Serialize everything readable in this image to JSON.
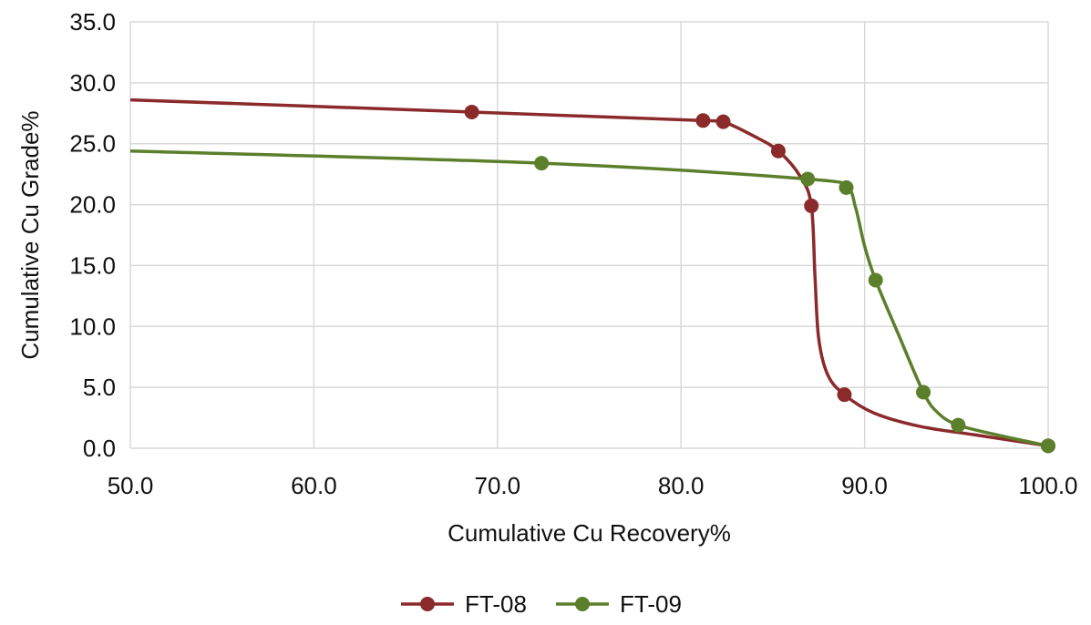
{
  "chart_data": {
    "type": "line",
    "title": "",
    "xlabel": "Cumulative Cu Recovery%",
    "ylabel": "Cumulative Cu Grade%",
    "xlim": [
      50.0,
      100.0
    ],
    "ylim": [
      0.0,
      35.0
    ],
    "x_ticks": [
      "50.0",
      "60.0",
      "70.0",
      "80.0",
      "90.0",
      "100.0"
    ],
    "y_ticks": [
      "0.0",
      "5.0",
      "10.0",
      "15.0",
      "20.0",
      "25.0",
      "30.0",
      "35.0"
    ],
    "grid": true,
    "legend_position": "bottom",
    "series": [
      {
        "name": "FT-08",
        "color": "#8b2a2a",
        "points": [
          {
            "x": 68.6,
            "y": 27.6
          },
          {
            "x": 81.2,
            "y": 26.9
          },
          {
            "x": 82.3,
            "y": 26.8
          },
          {
            "x": 85.3,
            "y": 24.4
          },
          {
            "x": 87.1,
            "y": 19.9
          },
          {
            "x": 88.9,
            "y": 4.4
          },
          {
            "x": 100.0,
            "y": 0.2
          }
        ],
        "line_points": [
          {
            "x": 50.0,
            "y": 28.6
          },
          {
            "x": 68.6,
            "y": 27.6
          },
          {
            "x": 81.2,
            "y": 26.9
          },
          {
            "x": 82.3,
            "y": 26.8
          },
          {
            "x": 84.0,
            "y": 25.6
          },
          {
            "x": 85.3,
            "y": 24.4
          },
          {
            "x": 86.5,
            "y": 22.3
          },
          {
            "x": 87.1,
            "y": 19.9
          },
          {
            "x": 87.3,
            "y": 14.0
          },
          {
            "x": 87.5,
            "y": 9.0
          },
          {
            "x": 88.0,
            "y": 6.0
          },
          {
            "x": 88.9,
            "y": 4.4
          },
          {
            "x": 90.5,
            "y": 2.9
          },
          {
            "x": 93.0,
            "y": 1.8
          },
          {
            "x": 96.0,
            "y": 1.1
          },
          {
            "x": 100.0,
            "y": 0.2
          }
        ]
      },
      {
        "name": "FT-09",
        "color": "#5b7f2b",
        "points": [
          {
            "x": 72.4,
            "y": 23.4
          },
          {
            "x": 86.9,
            "y": 22.1
          },
          {
            "x": 89.0,
            "y": 21.4
          },
          {
            "x": 90.6,
            "y": 13.8
          },
          {
            "x": 93.2,
            "y": 4.6
          },
          {
            "x": 95.1,
            "y": 1.9
          },
          {
            "x": 100.0,
            "y": 0.2
          }
        ],
        "line_points": [
          {
            "x": 50.0,
            "y": 24.4
          },
          {
            "x": 72.4,
            "y": 23.4
          },
          {
            "x": 86.9,
            "y": 22.1
          },
          {
            "x": 89.0,
            "y": 21.4
          },
          {
            "x": 89.5,
            "y": 19.8
          },
          {
            "x": 90.0,
            "y": 16.6
          },
          {
            "x": 90.6,
            "y": 13.8
          },
          {
            "x": 91.8,
            "y": 9.5
          },
          {
            "x": 93.2,
            "y": 4.6
          },
          {
            "x": 94.0,
            "y": 2.9
          },
          {
            "x": 95.1,
            "y": 1.9
          },
          {
            "x": 97.5,
            "y": 1.0
          },
          {
            "x": 100.0,
            "y": 0.2
          }
        ]
      }
    ]
  }
}
